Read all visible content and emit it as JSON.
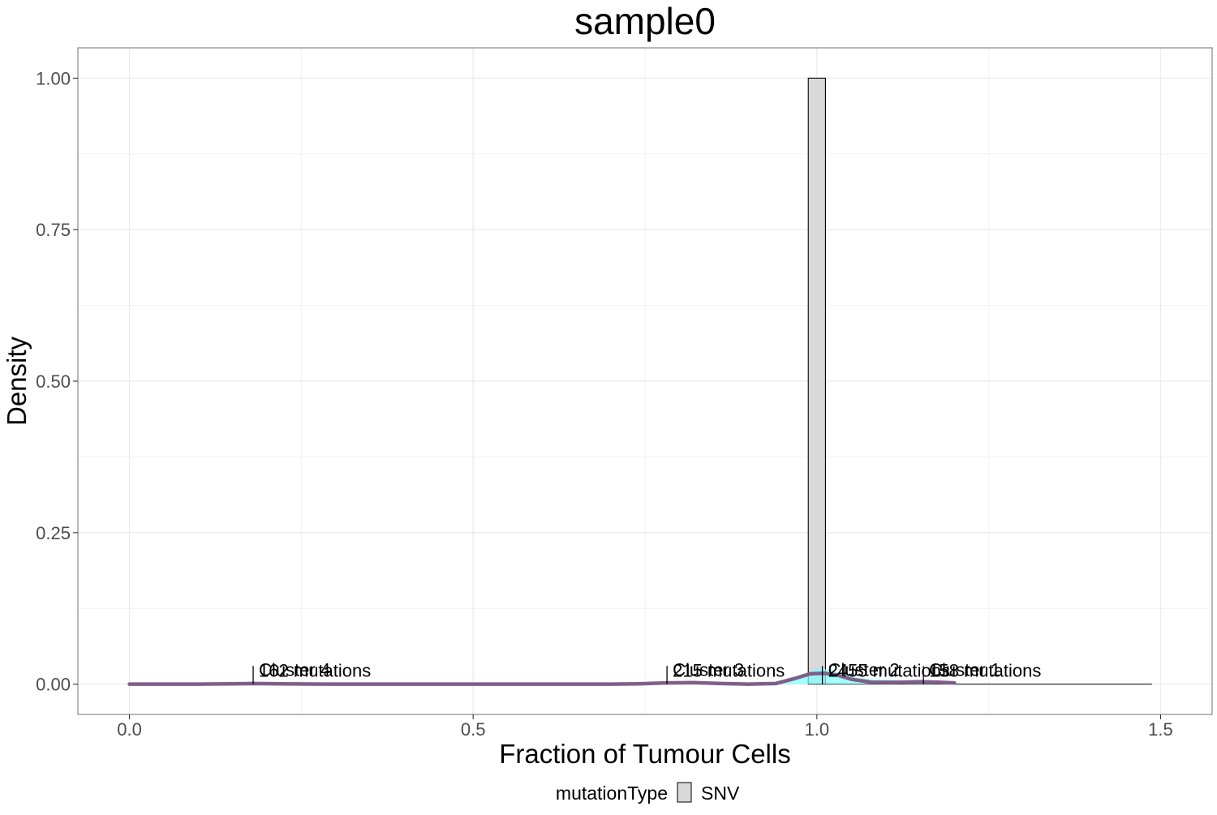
{
  "chart_data": {
    "type": "bar",
    "title": "sample0",
    "xlabel": "Fraction of Tumour Cells",
    "ylabel": "Density",
    "xlim": [
      -0.075,
      1.575
    ],
    "ylim": [
      -0.05,
      1.05
    ],
    "x_ticks": [
      {
        "value": 0.0,
        "label": "0.0"
      },
      {
        "value": 0.5,
        "label": "0.5"
      },
      {
        "value": 1.0,
        "label": "1.0"
      },
      {
        "value": 1.5,
        "label": "1.5"
      }
    ],
    "y_ticks": [
      {
        "value": 0.0,
        "label": "0.00"
      },
      {
        "value": 0.25,
        "label": "0.25"
      },
      {
        "value": 0.5,
        "label": "0.50"
      },
      {
        "value": 0.75,
        "label": "0.75"
      },
      {
        "value": 1.0,
        "label": "1.00"
      }
    ],
    "histogram": {
      "series_name": "SNV",
      "fill": "#d9d9d9",
      "stroke": "#000000",
      "bins": [
        {
          "x0": 0.9875,
          "x1": 1.0125,
          "value": 1.0
        }
      ],
      "baseline_range": [
        1.0125,
        1.4875
      ]
    },
    "density_curves": [
      {
        "color": "#7fffff",
        "opacity": 0.7,
        "filled": true,
        "points": [
          [
            0.9,
            0.0
          ],
          [
            0.95,
            0.003
          ],
          [
            0.98,
            0.015
          ],
          [
            1.0,
            0.026
          ],
          [
            1.02,
            0.024
          ],
          [
            1.05,
            0.012
          ],
          [
            1.08,
            0.008
          ],
          [
            1.11,
            0.007
          ],
          [
            1.14,
            0.005
          ],
          [
            1.17,
            0.003
          ],
          [
            1.2,
            0.001
          ]
        ]
      },
      {
        "color": "#7f5f88",
        "opacity": 1,
        "filled": false,
        "points": [
          [
            0.0,
            0.0
          ],
          [
            0.1,
            0.0
          ],
          [
            0.15,
            0.0005
          ],
          [
            0.18,
            0.001
          ],
          [
            0.22,
            0.0005
          ],
          [
            0.3,
            0.0
          ],
          [
            0.5,
            0.0
          ],
          [
            0.7,
            0.0
          ],
          [
            0.74,
            0.0005
          ],
          [
            0.78,
            0.002
          ],
          [
            0.82,
            0.0025
          ],
          [
            0.86,
            0.001
          ],
          [
            0.9,
            0.0
          ],
          [
            0.94,
            0.001
          ],
          [
            0.97,
            0.01
          ],
          [
            0.99,
            0.017
          ],
          [
            1.01,
            0.018
          ],
          [
            1.03,
            0.015
          ],
          [
            1.05,
            0.008
          ],
          [
            1.08,
            0.003
          ],
          [
            1.12,
            0.003
          ],
          [
            1.15,
            0.004
          ],
          [
            1.18,
            0.003
          ],
          [
            1.2,
            0.002
          ]
        ]
      }
    ],
    "clusters": [
      {
        "x": 0.18,
        "name": "Cluster 4",
        "mutations": "162 mutations"
      },
      {
        "x": 0.782,
        "name": "Cluster 3",
        "mutations": "215 mutations"
      },
      {
        "x": 1.008,
        "name": "Cluster 2",
        "mutations": "2455 mutations"
      },
      {
        "x": 1.155,
        "name": "Cluster 1",
        "mutations": "158 mutations"
      }
    ],
    "cluster_marker_height": 0.03,
    "grid": true,
    "legend": {
      "title": "mutationType",
      "items": [
        {
          "label": "SNV",
          "fill": "#d9d9d9"
        }
      ],
      "placement": "bottom"
    }
  }
}
